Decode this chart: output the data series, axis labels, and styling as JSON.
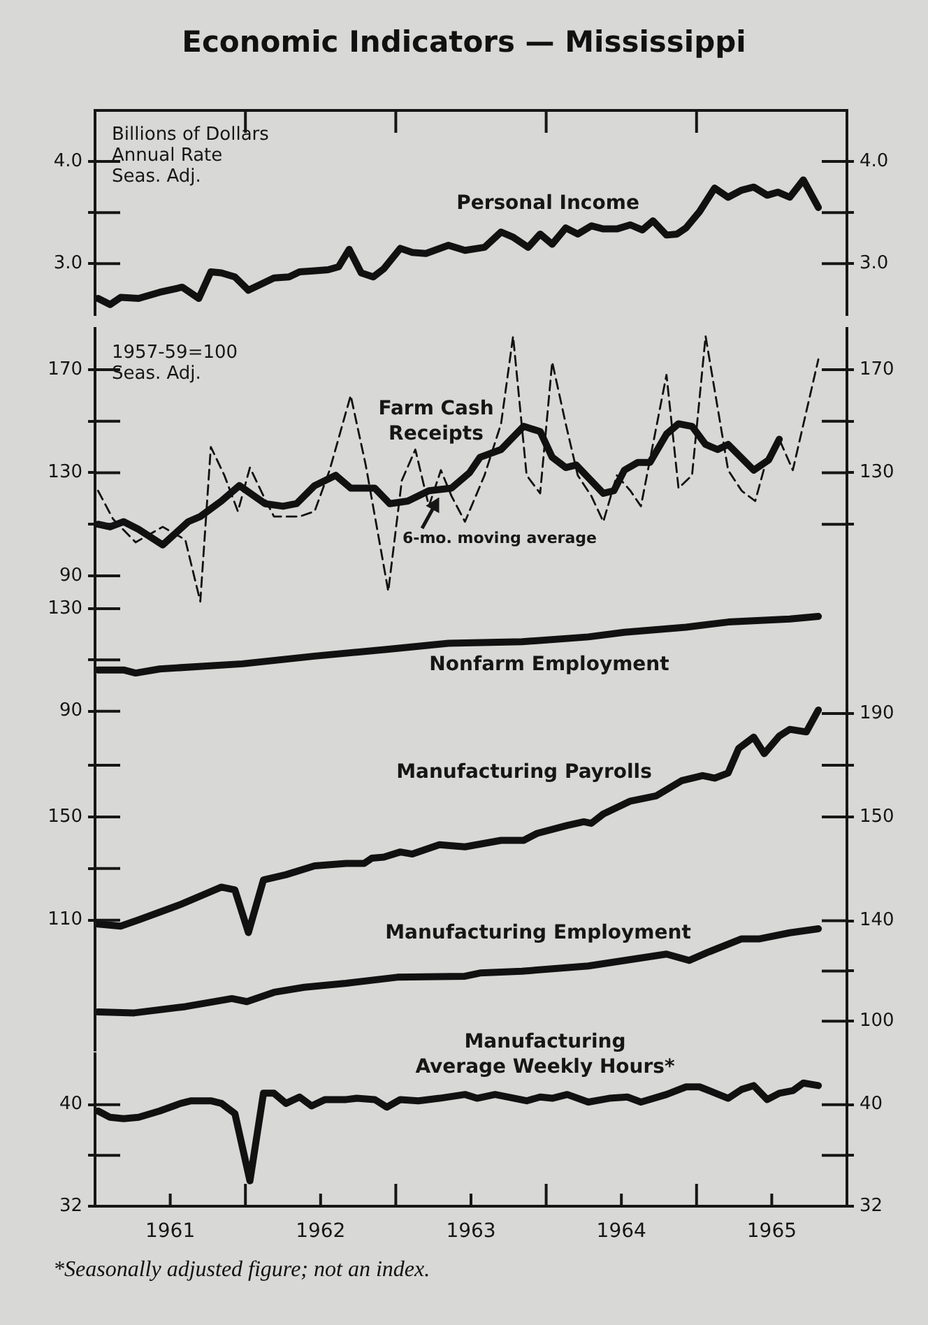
{
  "chart_data": [
    {
      "type": "line",
      "title": "Economic Indicators — Mississippi",
      "ylabel": "Billions of Dollars\nAnnual Rate\nSeas. Adj.",
      "tick_labels": "y",
      "xlim": [
        1961,
        1966
      ],
      "xticks": [
        {
          "value": 1962,
          "label": null
        },
        {
          "value": 1963,
          "label": null
        },
        {
          "value": 1964,
          "label": null
        },
        {
          "value": 1965,
          "label": null
        }
      ],
      "ylim": [
        2.5,
        4.5
      ],
      "yticks": [
        {
          "value": 3,
          "label": "3.0"
        },
        {
          "value": 3.5,
          "label": null
        },
        {
          "value": 4,
          "label": "4.0"
        }
      ],
      "y2lim": [
        2.5,
        4.5
      ],
      "y2ticks": [
        {
          "value": 3,
          "label": "3.0"
        },
        {
          "value": 3.5,
          "label": null
        },
        {
          "value": 4,
          "label": "4.0"
        }
      ],
      "series": [
        {
          "name": "Personal Income",
          "color": "#111111",
          "x": [
            1961.02,
            1961.1,
            1961.17,
            1961.29,
            1961.43,
            1961.58,
            1961.69,
            1961.77,
            1961.84,
            1961.93,
            1962.02,
            1962.19,
            1962.29,
            1962.36,
            1962.46,
            1962.55,
            1962.62,
            1962.69,
            1962.77,
            1962.85,
            1962.92,
            1963.03,
            1963.11,
            1963.2,
            1963.35,
            1963.46,
            1963.59,
            1963.7,
            1963.78,
            1963.88,
            1963.96,
            1964.04,
            1964.13,
            1964.21,
            1964.3,
            1964.38,
            1964.47,
            1964.56,
            1964.64,
            1964.71,
            1964.8,
            1964.87,
            1964.93,
            1965.02,
            1965.12,
            1965.21,
            1965.3,
            1965.38,
            1965.47,
            1965.54,
            1965.62,
            1965.71,
            1965.81
          ],
          "values": [
            2.66,
            2.6,
            2.67,
            2.66,
            2.72,
            2.77,
            2.66,
            2.92,
            2.91,
            2.87,
            2.74,
            2.86,
            2.87,
            2.92,
            2.93,
            2.94,
            2.97,
            3.14,
            2.91,
            2.87,
            2.95,
            3.15,
            3.11,
            3.1,
            3.18,
            3.13,
            3.16,
            3.31,
            3.26,
            3.16,
            3.29,
            3.19,
            3.35,
            3.29,
            3.37,
            3.34,
            3.34,
            3.38,
            3.33,
            3.42,
            3.28,
            3.29,
            3.35,
            3.51,
            3.74,
            3.65,
            3.72,
            3.75,
            3.67,
            3.7,
            3.65,
            3.82,
            3.55
          ]
        }
      ]
    },
    {
      "type": "line",
      "ylabel": "1957-59=100\nSeas. Adj.",
      "tick_labels": "y",
      "xlim": [
        1961,
        1966
      ],
      "ylim": [
        66,
        186
      ],
      "yticks": [
        90,
        {
          "value": 110,
          "label": null
        },
        130,
        {
          "value": 150,
          "label": null
        },
        170
      ],
      "y2lim": [
        66,
        186
      ],
      "y2ticks": [
        {
          "value": 110,
          "label": null
        },
        130,
        {
          "value": 150,
          "label": null
        },
        170
      ],
      "series": [
        {
          "name": "Farm Cash Receipts",
          "color": "#111111",
          "line_style": "dashed",
          "x": [
            1961.02,
            1961.12,
            1961.27,
            1961.45,
            1961.6,
            1961.7,
            1961.77,
            1961.86,
            1961.95,
            1962.03,
            1962.12,
            1962.19,
            1962.36,
            1962.46,
            1962.56,
            1962.7,
            1962.8,
            1962.95,
            1963.04,
            1963.13,
            1963.22,
            1963.3,
            1963.37,
            1963.46,
            1963.59,
            1963.7,
            1963.78,
            1963.87,
            1963.96,
            1964.04,
            1964.13,
            1964.21,
            1964.3,
            1964.38,
            1964.47,
            1964.56,
            1964.63,
            1964.8,
            1964.88,
            1964.97,
            1965.06,
            1965.21,
            1965.3,
            1965.39,
            1965.47,
            1965.55,
            1965.64,
            1965.81
          ],
          "values": [
            123,
            112,
            103,
            109,
            104,
            80,
            140,
            129,
            115,
            132,
            121,
            113,
            113,
            115,
            131,
            160,
            133,
            84,
            127,
            139,
            117,
            131,
            121,
            111,
            129,
            149,
            183,
            129,
            122,
            173,
            149,
            129,
            121,
            111,
            129,
            123,
            117,
            168,
            124,
            129,
            183,
            131,
            123,
            119,
            136,
            143,
            131,
            174
          ]
        },
        {
          "name": "6-mo. moving average",
          "color": "#111111",
          "x": [
            1961.02,
            1961.1,
            1961.19,
            1961.29,
            1961.45,
            1961.62,
            1961.7,
            1961.84,
            1961.96,
            1962.13,
            1962.25,
            1962.34,
            1962.46,
            1962.6,
            1962.7,
            1962.86,
            1962.96,
            1963.08,
            1963.22,
            1963.37,
            1963.49,
            1963.56,
            1963.7,
            1963.85,
            1963.96,
            1964.04,
            1964.13,
            1964.2,
            1964.38,
            1964.45,
            1964.52,
            1964.61,
            1964.69,
            1964.8,
            1964.88,
            1964.97,
            1965.06,
            1965.14,
            1965.21,
            1965.38,
            1965.48,
            1965.55
          ],
          "values": [
            110,
            109,
            111,
            108,
            102,
            111,
            113,
            119,
            125,
            118,
            117,
            118,
            125,
            129,
            124,
            124,
            118,
            119,
            123,
            124,
            130,
            136,
            139,
            148,
            146,
            136,
            132,
            133,
            122,
            123,
            131,
            134,
            134,
            145,
            149,
            148,
            141,
            139,
            141,
            131,
            135,
            143
          ]
        }
      ]
    },
    {
      "type": "line",
      "tick_labels": "y",
      "xlim": [
        1961,
        1966
      ],
      "ylim": [
        86,
        145
      ],
      "yticks": [
        90,
        {
          "value": 110,
          "label": null
        },
        130
      ],
      "series": [
        {
          "name": "Nonfarm Employment",
          "color": "#111111",
          "x": [
            1961.02,
            1961.19,
            1961.27,
            1961.43,
            1961.98,
            1962.46,
            1962.94,
            1963.35,
            1963.84,
            1964.28,
            1964.52,
            1964.93,
            1965.21,
            1965.62,
            1965.81
          ],
          "values": [
            106.1,
            106.1,
            104.9,
            106.5,
            108.5,
            111.5,
            114.1,
            116.5,
            117.1,
            119.0,
            120.8,
            122.8,
            124.8,
            126.0,
            127.0
          ]
        }
      ]
    },
    {
      "type": "line",
      "tick_labels": "y",
      "xlim": [
        1961,
        1966
      ],
      "ylim": [
        96,
        206
      ],
      "yticks": [
        110,
        {
          "value": 130,
          "label": null
        },
        150,
        {
          "value": 170,
          "label": null
        }
      ],
      "y2lim": [
        96,
        206
      ],
      "y2ticks": [
        150,
        {
          "value": 170,
          "label": null
        },
        190
      ],
      "series": [
        {
          "name": "Manufacturing Payrolls",
          "color": "#111111",
          "x": [
            1961.02,
            1961.17,
            1961.29,
            1961.57,
            1961.84,
            1961.93,
            1962.02,
            1962.12,
            1962.27,
            1962.46,
            1962.67,
            1962.79,
            1962.84,
            1962.92,
            1963.03,
            1963.11,
            1963.29,
            1963.46,
            1963.7,
            1963.85,
            1963.94,
            1964.14,
            1964.25,
            1964.3,
            1964.38,
            1964.56,
            1964.73,
            1964.9,
            1965.04,
            1965.12,
            1965.21,
            1965.28,
            1965.38,
            1965.45,
            1965.55,
            1965.62,
            1965.73,
            1965.81
          ],
          "values": [
            108.5,
            107.7,
            110.1,
            116.1,
            122.8,
            121.7,
            105.2,
            125.6,
            127.6,
            131.0,
            132.0,
            132.0,
            134.0,
            134.4,
            136.4,
            135.6,
            139.2,
            138.4,
            140.9,
            140.9,
            143.6,
            146.7,
            148.1,
            147.5,
            151.1,
            156.1,
            158.1,
            164.0,
            166.0,
            165.0,
            167.0,
            176.5,
            180.9,
            174.5,
            181.3,
            183.9,
            182.9,
            191.4
          ]
        }
      ]
    },
    {
      "type": "line",
      "tick_labels": "y",
      "xlim": [
        1961,
        1966
      ],
      "y2lim": [
        88,
        156
      ],
      "y2ticks": [
        100,
        {
          "value": 120,
          "label": null
        },
        140
      ],
      "series": [
        {
          "name": "Manufacturing Employment",
          "color": "#111111",
          "axis": "y2",
          "x": [
            1961.02,
            1961.26,
            1961.6,
            1961.91,
            1962.01,
            1962.19,
            1962.39,
            1962.67,
            1963.01,
            1963.46,
            1963.56,
            1963.84,
            1964.28,
            1964.8,
            1964.95,
            1965.07,
            1965.3,
            1965.42,
            1965.62,
            1965.81
          ],
          "values": [
            103.7,
            103.3,
            105.8,
            109.0,
            107.8,
            111.5,
            113.5,
            115.1,
            117.5,
            117.9,
            119.2,
            119.9,
            122.0,
            126.7,
            124.2,
            127.3,
            132.8,
            132.8,
            135.2,
            136.8
          ]
        }
      ]
    },
    {
      "type": "line",
      "xlim": [
        1961,
        1966
      ],
      "xticks": [
        {
          "value": 1961.5,
          "label": "1961"
        },
        {
          "value": 1962,
          "label": null
        },
        {
          "value": 1962.5,
          "label": "1962"
        },
        {
          "value": 1963,
          "label": null
        },
        {
          "value": 1963.5,
          "label": "1963"
        },
        {
          "value": 1964,
          "label": null
        },
        {
          "value": 1964.5,
          "label": "1964"
        },
        {
          "value": 1965,
          "label": null
        },
        {
          "value": 1965.5,
          "label": "1965"
        }
      ],
      "ylim": [
        32,
        44
      ],
      "yticks": [
        32,
        {
          "value": 36,
          "label": null
        },
        40
      ],
      "y2lim": [
        32,
        44
      ],
      "y2ticks": [
        32,
        {
          "value": 36,
          "label": null
        },
        40
      ],
      "annotations": [
        "*Seasonally adjusted figure; not an index."
      ],
      "series": [
        {
          "name": "Manufacturing\nAverage Weekly Hours*",
          "color": "#111111",
          "x": [
            1961.02,
            1961.1,
            1961.19,
            1961.29,
            1961.43,
            1961.57,
            1961.64,
            1961.77,
            1961.84,
            1961.93,
            1962.03,
            1962.12,
            1962.19,
            1962.27,
            1962.36,
            1962.44,
            1962.53,
            1962.67,
            1962.74,
            1962.86,
            1962.94,
            1963.03,
            1963.15,
            1963.29,
            1963.46,
            1963.54,
            1963.66,
            1963.87,
            1963.96,
            1964.04,
            1964.14,
            1964.28,
            1964.42,
            1964.54,
            1964.63,
            1964.8,
            1964.93,
            1965.02,
            1965.21,
            1965.3,
            1965.38,
            1965.47,
            1965.55,
            1965.64,
            1965.71,
            1965.81
          ],
          "values": [
            39.5,
            39.0,
            38.9,
            39.0,
            39.5,
            40.1,
            40.3,
            40.3,
            40.1,
            39.3,
            34.0,
            40.9,
            40.9,
            40.1,
            40.6,
            39.9,
            40.4,
            40.4,
            40.5,
            40.4,
            39.8,
            40.4,
            40.3,
            40.5,
            40.8,
            40.5,
            40.8,
            40.3,
            40.6,
            40.5,
            40.8,
            40.2,
            40.5,
            40.6,
            40.2,
            40.8,
            41.4,
            41.4,
            40.5,
            41.2,
            41.5,
            40.4,
            40.9,
            41.1,
            41.7,
            41.5
          ]
        }
      ]
    }
  ]
}
